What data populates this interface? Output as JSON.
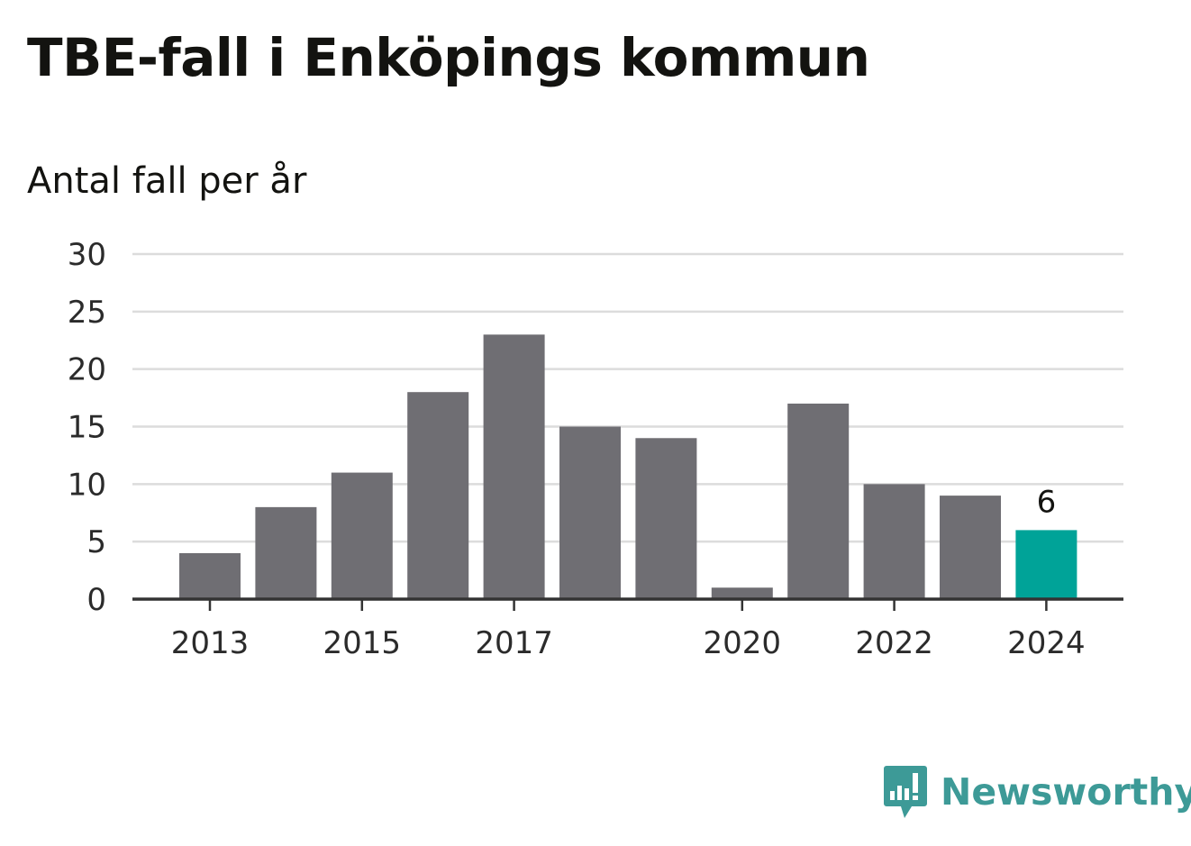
{
  "title": "TBE-fall i Enköpings kommun",
  "subtitle": "Antal fall per år",
  "chart_data": {
    "type": "bar",
    "x": [
      2013,
      2014,
      2015,
      2016,
      2017,
      2018,
      2019,
      2020,
      2021,
      2022,
      2023,
      2024
    ],
    "values": [
      4,
      8,
      11,
      18,
      23,
      15,
      14,
      1,
      17,
      10,
      9,
      6
    ],
    "x_tick_labels": [
      "2013",
      "2015",
      "2017",
      "2020",
      "2022",
      "2024"
    ],
    "y_ticks": [
      0,
      5,
      10,
      15,
      20,
      25,
      30
    ],
    "ylim": [
      0,
      30
    ],
    "grid": true,
    "highlight": {
      "year": 2024,
      "label": "6"
    },
    "colors": {
      "bar": "#6f6e73",
      "highlight": "#00a398",
      "grid": "#dcdcdc",
      "axis": "#333333"
    }
  },
  "brand": {
    "name": "Newsworthy",
    "icon": "newsworthy-logo-icon",
    "color": "#3d9a97"
  }
}
